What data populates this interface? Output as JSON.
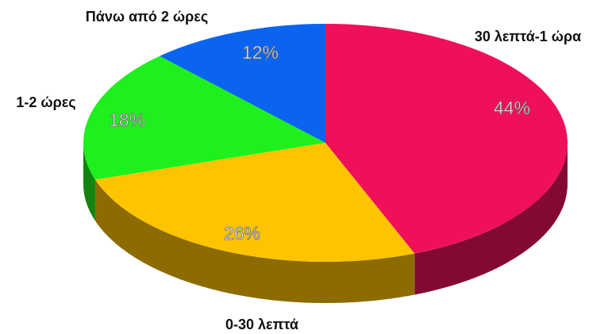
{
  "chart_data": {
    "type": "pie",
    "categories": [
      "30 λεπτά-1 ώρα",
      "0-30 λεπτά",
      "1-2 ώρες",
      "Πάνω από 2 ώρες"
    ],
    "values": [
      44,
      26,
      18,
      12
    ],
    "value_labels": [
      "44%",
      "26%",
      "18%",
      "12%"
    ],
    "colors": [
      "#f0105a",
      "#ffc400",
      "#1ef01e",
      "#0a64f0"
    ],
    "start_angle": 0,
    "direction": "clockwise"
  }
}
